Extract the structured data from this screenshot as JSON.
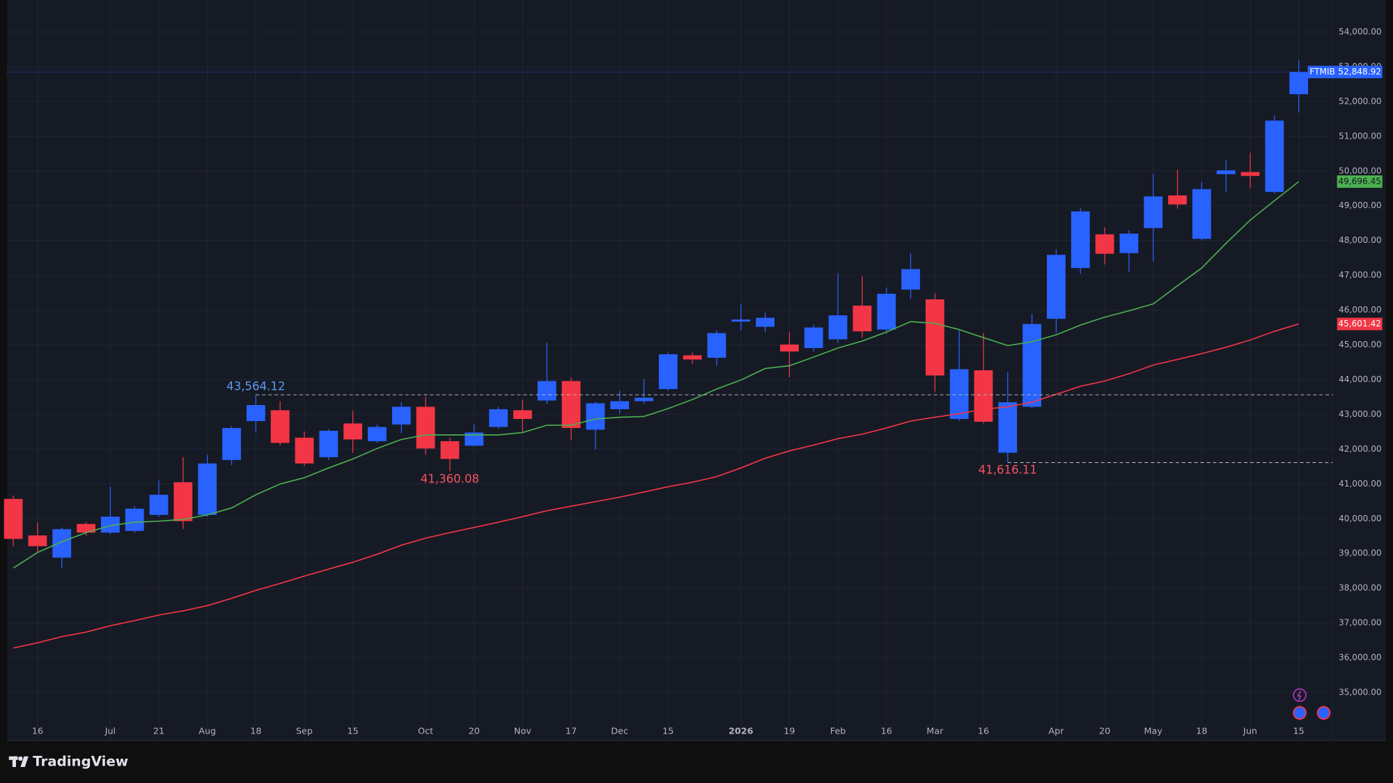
{
  "chart_data": {
    "type": "candlestick",
    "brand": "TradingView",
    "categories": [
      null,
      "16",
      null,
      null,
      "Jul",
      null,
      "21",
      null,
      "Aug",
      null,
      "18",
      null,
      "Sep",
      null,
      "15",
      null,
      null,
      "Oct",
      null,
      "20",
      null,
      "Nov",
      null,
      "17",
      null,
      "Dec",
      null,
      "15",
      null,
      null,
      "2026",
      null,
      "19",
      null,
      "Feb",
      null,
      "16",
      null,
      "Mar",
      null,
      "16",
      null,
      null,
      "Apr",
      null,
      "20",
      null,
      "May",
      null,
      "18",
      null,
      "Jun",
      null,
      "15"
    ],
    "ylim": [
      33650,
      54920
    ],
    "yticks": [
      {
        "value": 35000,
        "label": "35,000.00"
      },
      {
        "value": 36000,
        "label": "36,000.00"
      },
      {
        "value": 37000,
        "label": "37,000.00"
      },
      {
        "value": 38000,
        "label": "38,000.00"
      },
      {
        "value": 39000,
        "label": "39,000.00"
      },
      {
        "value": 40000,
        "label": "40,000.00"
      },
      {
        "value": 41000,
        "label": "41,000.00"
      },
      {
        "value": 42000,
        "label": "42,000.00"
      },
      {
        "value": 43000,
        "label": "43,000.00"
      },
      {
        "value": 44000,
        "label": "44,000.00"
      },
      {
        "value": 45000,
        "label": "45,000.00"
      },
      {
        "value": 46000,
        "label": "46,000.00"
      },
      {
        "value": 47000,
        "label": "47,000.00"
      },
      {
        "value": 48000,
        "label": "48,000.00"
      },
      {
        "value": 49000,
        "label": "49,000.00"
      },
      {
        "value": 50000,
        "label": "50,000.00"
      },
      {
        "value": 51000,
        "label": "51,000.00"
      },
      {
        "value": 52000,
        "label": "52,000.00"
      },
      {
        "value": 53000,
        "label": "53,000.00"
      },
      {
        "value": 54000,
        "label": "54,000.00"
      }
    ],
    "grid": true,
    "series": [
      {
        "name": "FTMIB",
        "up_color": "#2962ff",
        "down_color": "#f23645",
        "last_label": "52,848.92",
        "open": [
          40570,
          39520,
          38880,
          39850,
          39600,
          39650,
          40110,
          41050,
          40110,
          41690,
          42810,
          43120,
          42330,
          41770,
          42740,
          42230,
          42710,
          43220,
          42230,
          42100,
          42640,
          43120,
          43400,
          43960,
          42560,
          43150,
          43380,
          43730,
          44700,
          44630,
          45670,
          45520,
          45010,
          44910,
          45160,
          46130,
          45440,
          46590,
          46310,
          42870,
          44270,
          41900,
          43220,
          45750,
          47210,
          48180,
          47640,
          48360,
          49300,
          48050,
          49910,
          49970,
          49400,
          52210
        ],
        "high": [
          40670,
          39900,
          39750,
          39900,
          40920,
          40360,
          41100,
          41770,
          41840,
          42660,
          43564.12,
          43380,
          42510,
          42580,
          43100,
          42710,
          43350,
          43500,
          42330,
          42710,
          43220,
          43430,
          45060,
          44060,
          43370,
          43680,
          44010,
          44780,
          44780,
          45420,
          46190,
          45930,
          45370,
          45580,
          47050,
          46970,
          46650,
          47640,
          46490,
          45420,
          45340,
          44220,
          45900,
          47740,
          48940,
          48380,
          48300,
          49910,
          50040,
          49680,
          50320,
          50530,
          51600,
          53180
        ],
        "low": [
          39210,
          39030,
          38570,
          39500,
          39550,
          39600,
          40050,
          39700,
          40060,
          41540,
          42480,
          42100,
          41520,
          41690,
          41900,
          42180,
          42460,
          41850,
          41360.08,
          42080,
          42590,
          42480,
          43300,
          42250,
          41990,
          43020,
          43300,
          43680,
          44450,
          44400,
          45420,
          45370,
          44070,
          44810,
          45060,
          45210,
          45320,
          46330,
          43660,
          42820,
          42740,
          41616.11,
          43170,
          45340,
          47050,
          47310,
          47100,
          47410,
          48920,
          48000,
          49400,
          49500,
          49350,
          51680
        ],
        "close": [
          39420,
          39210,
          39700,
          39600,
          40060,
          40290,
          40690,
          39930,
          41590,
          42610,
          43270,
          42180,
          41590,
          42530,
          42280,
          42640,
          43220,
          42020,
          41720,
          42480,
          43150,
          42870,
          43960,
          42610,
          43320,
          43380,
          43480,
          44730,
          44580,
          45340,
          45730,
          45780,
          44810,
          45500,
          45850,
          45390,
          46470,
          47180,
          44120,
          44300,
          42790,
          43350,
          45600,
          47590,
          48840,
          47620,
          48200,
          49270,
          49040,
          49480,
          50020,
          49860,
          51450,
          52848.92
        ]
      },
      {
        "color": "#4caf50",
        "last_label": "49,696.45",
        "values": [
          38580,
          39030,
          39340,
          39600,
          39800,
          39900,
          39930,
          39980,
          40110,
          40310,
          40690,
          41000,
          41180,
          41460,
          41720,
          42020,
          42280,
          42410,
          42410,
          42410,
          42410,
          42480,
          42690,
          42690,
          42870,
          42920,
          42940,
          43170,
          43430,
          43730,
          43990,
          44320,
          44400,
          44650,
          44910,
          45110,
          45370,
          45670,
          45620,
          45440,
          45210,
          44980,
          45090,
          45290,
          45570,
          45800,
          45980,
          46180,
          46700,
          47210,
          47920,
          48590,
          49150,
          49696.45
        ]
      },
      {
        "color": "#f23645",
        "last_label": "45,601.42",
        "values": [
          36280,
          36430,
          36610,
          36740,
          36920,
          37070,
          37230,
          37350,
          37500,
          37710,
          37940,
          38140,
          38350,
          38550,
          38750,
          38980,
          39240,
          39440,
          39600,
          39750,
          39900,
          40060,
          40230,
          40360,
          40490,
          40620,
          40770,
          40920,
          41050,
          41210,
          41460,
          41740,
          41950,
          42120,
          42300,
          42430,
          42610,
          42810,
          42920,
          43020,
          43150,
          43220,
          43350,
          43580,
          43810,
          43960,
          44170,
          44420,
          44580,
          44750,
          44930,
          45140,
          45390,
          45601.42
        ]
      }
    ],
    "annotations": [
      {
        "value": 43564.12,
        "label": "43,564.12",
        "line": true
      },
      {
        "value": 41360.08,
        "label": "41,360.08",
        "line": false
      },
      {
        "value": 41616.11,
        "label": "41,616.11",
        "line": true
      }
    ]
  }
}
